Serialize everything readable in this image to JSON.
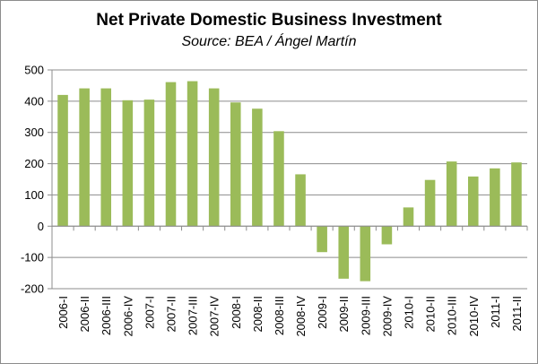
{
  "chart_data": {
    "type": "bar",
    "title": "Net Private Domestic Business Investment",
    "subtitle": "Source: BEA / Ángel Martín",
    "xlabel": "",
    "ylabel": "",
    "ylim": [
      -200,
      500
    ],
    "yticks": [
      500,
      400,
      300,
      200,
      100,
      0,
      -100,
      -200
    ],
    "grid": true,
    "bar_color": "#9bbb59",
    "categories": [
      "2006-I",
      "2006-II",
      "2006-III",
      "2006-IV",
      "2007-I",
      "2007-II",
      "2007-III",
      "2007-IV",
      "2008-I",
      "2008-II",
      "2008-III",
      "2008-IV",
      "2009-I",
      "2009-II",
      "2009-III",
      "2009-IV",
      "2010-I",
      "2010-II",
      "2010-III",
      "2010-IV",
      "2011-I",
      "2011-II"
    ],
    "values": [
      420,
      441,
      441,
      403,
      405,
      461,
      464,
      441,
      396,
      376,
      304,
      166,
      -83,
      -168,
      -176,
      -58,
      60,
      148,
      207,
      159,
      185,
      204
    ]
  }
}
